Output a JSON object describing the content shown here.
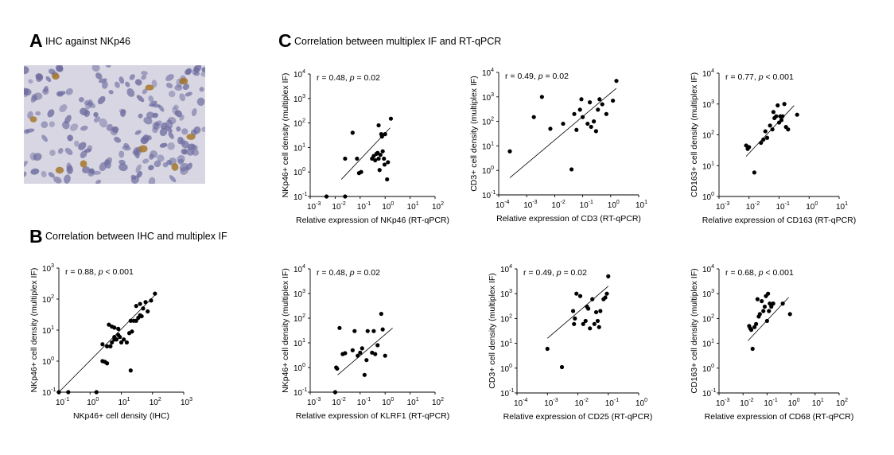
{
  "panels": {
    "A": {
      "letter": "A",
      "title": "IHC against NKp46"
    },
    "B": {
      "letter": "B",
      "title": "Correlation between IHC and multiplex IF"
    },
    "C": {
      "letter": "C",
      "title": "Correlation between multiplex IF and RT-qPCR"
    }
  },
  "colors": {
    "points": "#000000",
    "tissue_bg": "#d7d6e2",
    "nuclei": "#6e6c9f",
    "stain": "#a5772c"
  },
  "chart_data": [
    {
      "id": "B",
      "type": "scatter",
      "xlabel": "NKp46+ cell density (IHC)",
      "ylabel": "NKp46+ cell density (multiplex IF)",
      "x_tick_exps": [
        -1,
        0,
        1,
        2,
        3
      ],
      "y_tick_exps": [
        -1,
        0,
        1,
        2,
        3
      ],
      "xlim_log10": [
        -1,
        3
      ],
      "ylim_log10": [
        -1,
        3
      ],
      "stat_r": "r = 0.88, ",
      "stat_p_label": "p",
      "stat_p_value": " < 0.001",
      "fit_line_log10": [
        [
          -1,
          -1
        ],
        [
          2.1,
          2.15
        ]
      ],
      "points": [
        [
          0.1,
          0.1
        ],
        [
          0.2,
          0.1
        ],
        [
          1.6,
          0.1
        ],
        [
          20,
          0.5
        ],
        [
          2.5,
          1.0
        ],
        [
          3,
          0.95
        ],
        [
          3.5,
          0.85
        ],
        [
          2.5,
          3.5
        ],
        [
          3.5,
          3.0
        ],
        [
          4.5,
          3.0
        ],
        [
          5,
          4
        ],
        [
          6,
          5
        ],
        [
          7,
          5
        ],
        [
          9,
          6
        ],
        [
          10,
          4
        ],
        [
          12,
          5
        ],
        [
          15,
          4
        ],
        [
          4,
          15
        ],
        [
          5,
          13
        ],
        [
          6,
          12
        ],
        [
          8,
          11
        ],
        [
          6,
          6
        ],
        [
          8,
          7
        ],
        [
          20,
          20
        ],
        [
          25,
          20
        ],
        [
          18,
          8
        ],
        [
          22,
          9
        ],
        [
          30,
          20
        ],
        [
          35,
          25
        ],
        [
          40,
          30
        ],
        [
          45,
          28
        ],
        [
          30,
          60
        ],
        [
          40,
          70
        ],
        [
          50,
          50
        ],
        [
          60,
          80
        ],
        [
          70,
          40
        ],
        [
          90,
          90
        ],
        [
          120,
          150
        ]
      ]
    },
    {
      "id": "C1",
      "type": "scatter",
      "xlabel": "Relative expression of NKp46 (RT-qPCR)",
      "ylabel": "NKp46+ cell density (multiplex IF)",
      "x_tick_exps": [
        -3,
        -2,
        -1,
        0,
        1,
        2
      ],
      "y_tick_exps": [
        -1,
        0,
        1,
        2,
        3,
        4
      ],
      "xlim_log10": [
        -3,
        2
      ],
      "ylim_log10": [
        -1,
        4
      ],
      "stat_r": "r = 0.48, ",
      "stat_p_label": "p",
      "stat_p_value": " = 0.02",
      "fit_line_log10": [
        [
          -1.75,
          -0.3
        ],
        [
          0.2,
          1.8
        ]
      ],
      "points": [
        [
          0.0045,
          0.1
        ],
        [
          0.025,
          0.1
        ],
        [
          0.025,
          3.5
        ],
        [
          0.05,
          40
        ],
        [
          0.075,
          3.5
        ],
        [
          0.09,
          0.9
        ],
        [
          0.11,
          1.0
        ],
        [
          0.3,
          3.5
        ],
        [
          0.35,
          4.5
        ],
        [
          0.4,
          3.0
        ],
        [
          0.45,
          5.5
        ],
        [
          0.5,
          6
        ],
        [
          0.55,
          3.5
        ],
        [
          0.6,
          1.2
        ],
        [
          0.65,
          5
        ],
        [
          0.7,
          35
        ],
        [
          0.75,
          28
        ],
        [
          0.8,
          7
        ],
        [
          0.9,
          3.5
        ],
        [
          0.95,
          2.0
        ],
        [
          0.55,
          80
        ],
        [
          1.0,
          35
        ],
        [
          1.2,
          0.5
        ],
        [
          1.3,
          2.5
        ],
        [
          1.7,
          150
        ]
      ]
    },
    {
      "id": "C2",
      "type": "scatter",
      "xlabel": "Relative expression of CD3 (RT-qPCR)",
      "ylabel": "CD3+ cell density (multiplex IF)",
      "x_tick_exps": [
        -4,
        -3,
        -2,
        -1,
        0,
        1
      ],
      "y_tick_exps": [
        -1,
        0,
        1,
        2,
        3,
        4
      ],
      "xlim_log10": [
        -4,
        1
      ],
      "ylim_log10": [
        -1,
        4
      ],
      "stat_r": "r = 0.49, ",
      "stat_p_label": "p",
      "stat_p_value": " = 0.02",
      "fit_line_log10": [
        [
          -3.6,
          -0.3
        ],
        [
          0.2,
          3.35
        ]
      ],
      "points": [
        [
          0.00025,
          6
        ],
        [
          0.0018,
          150
        ],
        [
          0.0035,
          1000
        ],
        [
          0.007,
          50
        ],
        [
          0.02,
          80
        ],
        [
          0.04,
          1.1
        ],
        [
          0.05,
          200
        ],
        [
          0.06,
          45
        ],
        [
          0.08,
          300
        ],
        [
          0.09,
          800
        ],
        [
          0.1,
          150
        ],
        [
          0.15,
          80
        ],
        [
          0.18,
          600
        ],
        [
          0.2,
          60
        ],
        [
          0.25,
          100
        ],
        [
          0.3,
          40
        ],
        [
          0.35,
          300
        ],
        [
          0.4,
          800
        ],
        [
          0.5,
          500
        ],
        [
          0.7,
          200
        ],
        [
          1.2,
          700
        ],
        [
          1.6,
          4500
        ]
      ]
    },
    {
      "id": "C3",
      "type": "scatter",
      "xlabel": "Relative expression of CD163 (RT-qPCR)",
      "ylabel": "CD163+ cell density (multiplex IF)",
      "x_tick_exps": [
        -3,
        -2,
        -1,
        0,
        1
      ],
      "y_tick_exps": [
        0,
        1,
        2,
        3,
        4
      ],
      "xlim_log10": [
        -3,
        1
      ],
      "ylim_log10": [
        0,
        4
      ],
      "stat_r": "r = 0.77, ",
      "stat_p_label": "p",
      "stat_p_value": " < 0.001",
      "fit_line_log10": [
        [
          -2.1,
          1.3
        ],
        [
          -0.5,
          2.95
        ]
      ],
      "points": [
        [
          0.008,
          45
        ],
        [
          0.009,
          35
        ],
        [
          0.01,
          40
        ],
        [
          0.015,
          6
        ],
        [
          0.025,
          55
        ],
        [
          0.03,
          70
        ],
        [
          0.035,
          130
        ],
        [
          0.04,
          80
        ],
        [
          0.05,
          200
        ],
        [
          0.06,
          150
        ],
        [
          0.065,
          550
        ],
        [
          0.07,
          350
        ],
        [
          0.08,
          400
        ],
        [
          0.09,
          900
        ],
        [
          0.1,
          250
        ],
        [
          0.11,
          400
        ],
        [
          0.12,
          300
        ],
        [
          0.13,
          400
        ],
        [
          0.15,
          1000
        ],
        [
          0.17,
          180
        ],
        [
          0.2,
          150
        ],
        [
          0.4,
          450
        ]
      ]
    },
    {
      "id": "C4",
      "type": "scatter",
      "xlabel": "Relative expression of KLRF1 (RT-qPCR)",
      "ylabel": "NKp46+ cell density (multiplex IF)",
      "x_tick_exps": [
        -3,
        -2,
        -1,
        0,
        1,
        2
      ],
      "y_tick_exps": [
        -1,
        0,
        1,
        2,
        3,
        4
      ],
      "xlim_log10": [
        -3,
        2
      ],
      "ylim_log10": [
        -1,
        4
      ],
      "stat_r": "r = 0.48, ",
      "stat_p_label": "p",
      "stat_p_value": " = 0.02",
      "fit_line_log10": [
        [
          -1.9,
          -0.3
        ],
        [
          0.3,
          1.6
        ]
      ],
      "points": [
        [
          0.01,
          0.1
        ],
        [
          0.012,
          0.9
        ],
        [
          0.011,
          1.0
        ],
        [
          0.015,
          40
        ],
        [
          0.02,
          3.5
        ],
        [
          0.025,
          3.8
        ],
        [
          0.05,
          5
        ],
        [
          0.06,
          30
        ],
        [
          0.08,
          3.0
        ],
        [
          0.1,
          4
        ],
        [
          0.12,
          6
        ],
        [
          0.15,
          0.5
        ],
        [
          0.18,
          2.0
        ],
        [
          0.2,
          30
        ],
        [
          0.3,
          4
        ],
        [
          0.35,
          30
        ],
        [
          0.4,
          3.5
        ],
        [
          0.5,
          8
        ],
        [
          0.7,
          150
        ],
        [
          0.8,
          35
        ],
        [
          1.0,
          3.0
        ]
      ]
    },
    {
      "id": "C5",
      "type": "scatter",
      "xlabel": "Relative expression of CD25 (RT-qPCR)",
      "ylabel": "CD3+ cell density (multiplex IF)",
      "x_tick_exps": [
        -4,
        -3,
        -2,
        -1,
        0
      ],
      "y_tick_exps": [
        -1,
        0,
        1,
        2,
        3,
        4
      ],
      "xlim_log10": [
        -4,
        0
      ],
      "ylim_log10": [
        -1,
        4
      ],
      "stat_r": "r = 0.49, ",
      "stat_p_label": "p",
      "stat_p_value": " = 0.02",
      "fit_line_log10": [
        [
          -3,
          1.2
        ],
        [
          -1,
          3.3
        ]
      ],
      "points": [
        [
          0.001,
          6
        ],
        [
          0.003,
          1.1
        ],
        [
          0.007,
          200
        ],
        [
          0.0075,
          60
        ],
        [
          0.008,
          100
        ],
        [
          0.009,
          1000
        ],
        [
          0.012,
          800
        ],
        [
          0.015,
          60
        ],
        [
          0.018,
          80
        ],
        [
          0.02,
          300
        ],
        [
          0.022,
          250
        ],
        [
          0.025,
          40
        ],
        [
          0.03,
          600
        ],
        [
          0.035,
          60
        ],
        [
          0.04,
          180
        ],
        [
          0.045,
          80
        ],
        [
          0.05,
          45
        ],
        [
          0.055,
          200
        ],
        [
          0.07,
          600
        ],
        [
          0.08,
          700
        ],
        [
          0.09,
          1000
        ],
        [
          0.1,
          5000
        ]
      ]
    },
    {
      "id": "C6",
      "type": "scatter",
      "xlabel": "Relative expression of CD68 (RT-qPCR)",
      "ylabel": "CD163+ cell density (multiplex IF)",
      "x_tick_exps": [
        -3,
        -2,
        -1,
        0,
        1,
        2
      ],
      "y_tick_exps": [
        -1,
        0,
        1,
        2,
        3,
        4
      ],
      "xlim_log10": [
        -3,
        2
      ],
      "ylim_log10": [
        -1,
        4
      ],
      "stat_r": "r = 0.68, ",
      "stat_p_label": "p",
      "stat_p_value": " < 0.001",
      "fit_line_log10": [
        [
          -1.8,
          1.1
        ],
        [
          -0.1,
          2.85
        ]
      ],
      "points": [
        [
          0.018,
          50
        ],
        [
          0.02,
          40
        ],
        [
          0.022,
          35
        ],
        [
          0.025,
          6
        ],
        [
          0.03,
          45
        ],
        [
          0.035,
          60
        ],
        [
          0.04,
          600
        ],
        [
          0.045,
          120
        ],
        [
          0.05,
          150
        ],
        [
          0.06,
          500
        ],
        [
          0.07,
          200
        ],
        [
          0.08,
          300
        ],
        [
          0.09,
          800
        ],
        [
          0.1,
          80
        ],
        [
          0.11,
          1000
        ],
        [
          0.12,
          200
        ],
        [
          0.13,
          400
        ],
        [
          0.15,
          300
        ],
        [
          0.18,
          400
        ],
        [
          0.45,
          400
        ],
        [
          0.9,
          150
        ]
      ]
    }
  ]
}
